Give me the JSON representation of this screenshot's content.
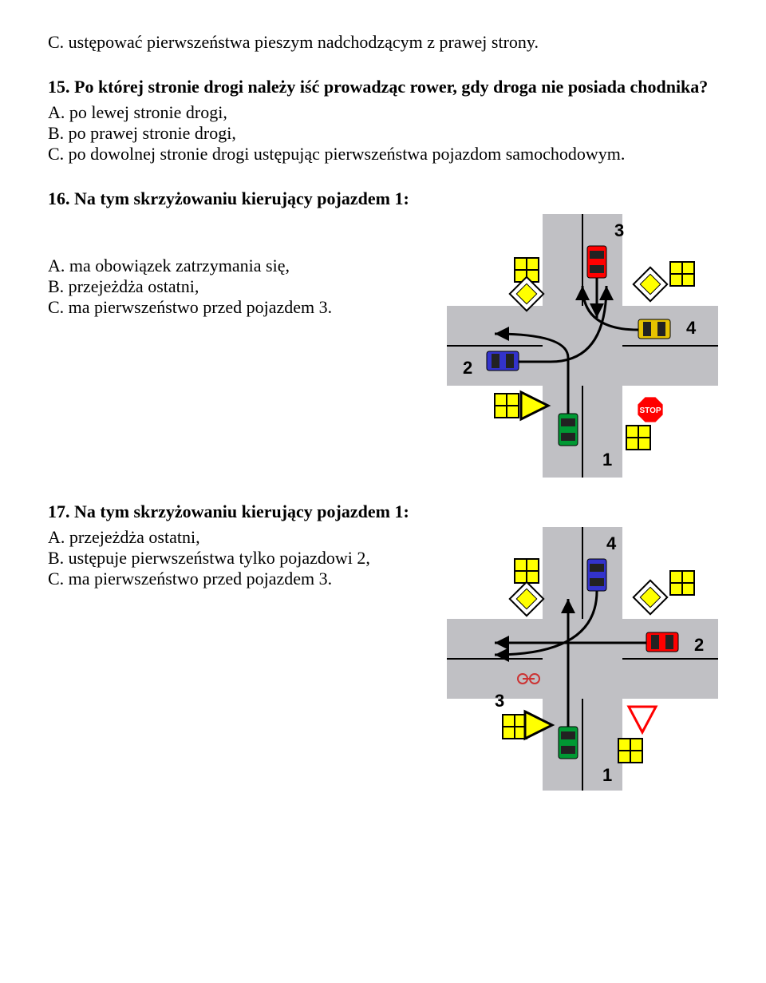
{
  "q14": {
    "optionC": "C. ustępować pierwszeństwa pieszym nadchodzącym z prawej strony."
  },
  "q15": {
    "title": "15. Po której stronie drogi należy iść prowadząc rower, gdy droga nie posiada chodnika?",
    "optA": "A. po lewej stronie drogi,",
    "optB": "B. po prawej stronie drogi,",
    "optC": "C. po dowolnej stronie drogi ustępując pierwszeństwa pojazdom samochodowym."
  },
  "q16": {
    "title": "16. Na tym skrzyżowaniu kierujący pojazdem 1:",
    "optA": "A. ma obowiązek zatrzymania się,",
    "optB": "B. przejeżdża ostatni,",
    "optC": "C. ma pierwszeństwo przed pojazdem 3.",
    "figure": {
      "bg": "#ffffff",
      "road": "#c0c0c4",
      "sign_yellow": "#ffff00",
      "sign_border": "#000000",
      "stop_red": "#ff0000",
      "car1": "#009933",
      "car2": "#3333cc",
      "car3": "#ff0000",
      "car4": "#e6c200",
      "label1": "1",
      "label2": "2",
      "label3": "3",
      "label4": "4"
    }
  },
  "q17": {
    "title": "17. Na tym skrzyżowaniu kierujący pojazdem 1:",
    "optA": "A. przejeżdża ostatni,",
    "optB": "B. ustępuje pierwszeństwa tylko pojazdowi 2,",
    "optC": "C. ma pierwszeństwo przed pojazdem 3.",
    "figure": {
      "bg": "#ffffff",
      "road": "#c0c0c4",
      "sign_yellow": "#ffff00",
      "sign_border": "#000000",
      "yield_red": "#ff0000",
      "car1": "#009933",
      "car2": "#ff0000",
      "car3": "#cc3333",
      "car4": "#3333cc",
      "label1": "1",
      "label2": "2",
      "label3": "3",
      "label4": "4"
    }
  }
}
